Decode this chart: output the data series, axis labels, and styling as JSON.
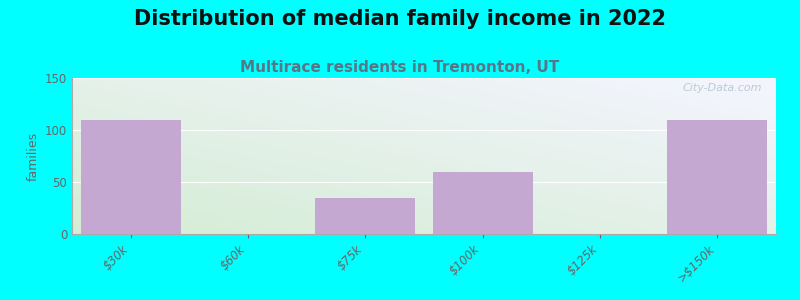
{
  "title": "Distribution of median family income in 2022",
  "subtitle": "Multirace residents in Tremonton, UT",
  "categories": [
    "$30k",
    "$60k",
    "$75k",
    "$100k",
    "$125k",
    ">$150k"
  ],
  "values": [
    110,
    0,
    35,
    60,
    0,
    110
  ],
  "bar_color": "#C4A8D2",
  "ylabel": "families",
  "ylim": [
    0,
    150
  ],
  "yticks": [
    0,
    50,
    100,
    150
  ],
  "background_color": "#00FFFF",
  "plot_bg_color_topleft": "#E8F5E8",
  "plot_bg_color_topright": "#F0F0F8",
  "plot_bg_color_bottomleft": "#D4EDD4",
  "plot_bg_color_bottomright": "#E8EEF5",
  "title_fontsize": 15,
  "subtitle_fontsize": 11,
  "subtitle_color": "#557788",
  "watermark": "City-Data.com"
}
